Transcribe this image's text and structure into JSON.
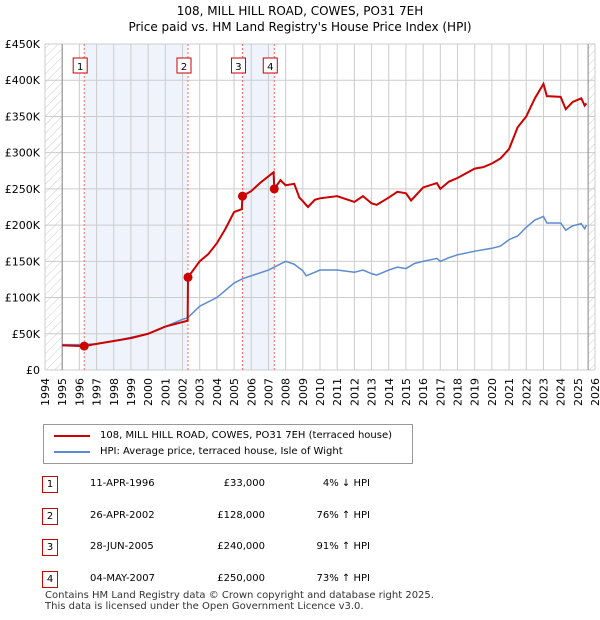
{
  "chart_data": {
    "type": "line",
    "title": "108, MILL HILL ROAD, COWES, PO31 7EH",
    "subtitle": "Price paid vs. HM Land Registry's House Price Index (HPI)",
    "xlim": [
      1994,
      2026
    ],
    "ylim": [
      0,
      450000
    ],
    "y_ticks": [
      "£0",
      "£50K",
      "£100K",
      "£150K",
      "£200K",
      "£250K",
      "£300K",
      "£350K",
      "£400K",
      "£450K"
    ],
    "x_ticks": [
      "1994",
      "1995",
      "1996",
      "1997",
      "1998",
      "1999",
      "2000",
      "2001",
      "2002",
      "2003",
      "2004",
      "2005",
      "2006",
      "2007",
      "2008",
      "2009",
      "2010",
      "2011",
      "2012",
      "2013",
      "2014",
      "2015",
      "2016",
      "2017",
      "2018",
      "2019",
      "2020",
      "2021",
      "2022",
      "2023",
      "2024",
      "2025",
      "2026"
    ],
    "grid": true,
    "series": [
      {
        "name": "108, MILL HILL ROAD, COWES, PO31 7EH (terraced house)",
        "color": "#cc0000",
        "points": [
          [
            1995,
            34
          ],
          [
            1996.28,
            33
          ],
          [
            1997,
            36
          ],
          [
            1998,
            40
          ],
          [
            1999,
            44
          ],
          [
            2000,
            50
          ],
          [
            2001,
            60
          ],
          [
            2002.3,
            68
          ],
          [
            2002.32,
            128
          ],
          [
            2003,
            150
          ],
          [
            2003.5,
            160
          ],
          [
            2004,
            175
          ],
          [
            2004.5,
            195
          ],
          [
            2005,
            218
          ],
          [
            2005.45,
            222
          ],
          [
            2005.49,
            240
          ],
          [
            2006,
            247
          ],
          [
            2006.5,
            258
          ],
          [
            2007.3,
            273
          ],
          [
            2007.34,
            250
          ],
          [
            2007.7,
            262
          ],
          [
            2008,
            255
          ],
          [
            2008.5,
            257
          ],
          [
            2008.8,
            238
          ],
          [
            2009,
            233
          ],
          [
            2009.3,
            225
          ],
          [
            2009.7,
            235
          ],
          [
            2010,
            237
          ],
          [
            2011,
            240
          ],
          [
            2012,
            232
          ],
          [
            2012.5,
            240
          ],
          [
            2013,
            230
          ],
          [
            2013.3,
            228
          ],
          [
            2014,
            238
          ],
          [
            2014.5,
            246
          ],
          [
            2015,
            244
          ],
          [
            2015.3,
            234
          ],
          [
            2016,
            252
          ],
          [
            2016.8,
            258
          ],
          [
            2017,
            250
          ],
          [
            2017.5,
            260
          ],
          [
            2018,
            265
          ],
          [
            2019,
            278
          ],
          [
            2019.5,
            280
          ],
          [
            2020,
            285
          ],
          [
            2020.5,
            292
          ],
          [
            2021,
            305
          ],
          [
            2021.5,
            335
          ],
          [
            2022,
            350
          ],
          [
            2022.5,
            375
          ],
          [
            2023,
            395
          ],
          [
            2023.2,
            378
          ],
          [
            2024,
            377
          ],
          [
            2024.3,
            360
          ],
          [
            2024.7,
            370
          ],
          [
            2025.2,
            375
          ],
          [
            2025.4,
            365
          ],
          [
            2025.5,
            368
          ]
        ]
      },
      {
        "name": "HPI: Average price, terraced house, Isle of Wight",
        "color": "#5b8bd0",
        "points": [
          [
            1995,
            35
          ],
          [
            1996,
            35
          ],
          [
            1997,
            36
          ],
          [
            1998,
            40
          ],
          [
            1999,
            45
          ],
          [
            2000,
            50
          ],
          [
            2001,
            60
          ],
          [
            2002,
            70
          ],
          [
            2002.3,
            72
          ],
          [
            2003,
            88
          ],
          [
            2004,
            100
          ],
          [
            2005,
            120
          ],
          [
            2005.5,
            126
          ],
          [
            2006,
            130
          ],
          [
            2007,
            138
          ],
          [
            2007.5,
            144
          ],
          [
            2008,
            150
          ],
          [
            2008.5,
            146
          ],
          [
            2009,
            137
          ],
          [
            2009.2,
            130
          ],
          [
            2009.5,
            133
          ],
          [
            2010,
            138
          ],
          [
            2011,
            138
          ],
          [
            2012,
            135
          ],
          [
            2012.5,
            138
          ],
          [
            2013,
            133
          ],
          [
            2013.3,
            131
          ],
          [
            2014,
            138
          ],
          [
            2014.5,
            142
          ],
          [
            2015,
            140
          ],
          [
            2015.5,
            147
          ],
          [
            2016,
            150
          ],
          [
            2016.8,
            154
          ],
          [
            2017,
            150
          ],
          [
            2017.5,
            155
          ],
          [
            2018,
            159
          ],
          [
            2019,
            164
          ],
          [
            2020,
            168
          ],
          [
            2020.5,
            171
          ],
          [
            2021,
            180
          ],
          [
            2021.5,
            185
          ],
          [
            2022,
            197
          ],
          [
            2022.5,
            207
          ],
          [
            2023,
            212
          ],
          [
            2023.2,
            203
          ],
          [
            2024,
            203
          ],
          [
            2024.3,
            193
          ],
          [
            2024.7,
            199
          ],
          [
            2025.2,
            202
          ],
          [
            2025.4,
            195
          ],
          [
            2025.5,
            200
          ]
        ]
      }
    ],
    "y_unit": "thousands GBP",
    "sales": [
      {
        "label": "1",
        "x": 1996.28,
        "y": 33
      },
      {
        "label": "2",
        "x": 2002.32,
        "y": 128
      },
      {
        "label": "3",
        "x": 2005.49,
        "y": 240
      },
      {
        "label": "4",
        "x": 2007.34,
        "y": 250
      }
    ],
    "shaded_ranges": [
      [
        1996.28,
        2002.32
      ],
      [
        2005.49,
        2007.34
      ]
    ],
    "data_range": [
      1995,
      2025.6
    ]
  },
  "legend": [
    "108, MILL HILL ROAD, COWES, PO31 7EH (terraced house)",
    "HPI: Average price, terraced house, Isle of Wight"
  ],
  "table": [
    {
      "n": "1",
      "date": "11-APR-1996",
      "price": "£33,000",
      "hpi": "4% ↓ HPI"
    },
    {
      "n": "2",
      "date": "26-APR-2002",
      "price": "£128,000",
      "hpi": "76% ↑ HPI"
    },
    {
      "n": "3",
      "date": "28-JUN-2005",
      "price": "£240,000",
      "hpi": "91% ↑ HPI"
    },
    {
      "n": "4",
      "date": "04-MAY-2007",
      "price": "£250,000",
      "hpi": "73% ↑ HPI"
    }
  ],
  "footer": [
    "Contains HM Land Registry data © Crown copyright and database right 2025.",
    "This data is licensed under the Open Government Licence v3.0."
  ]
}
